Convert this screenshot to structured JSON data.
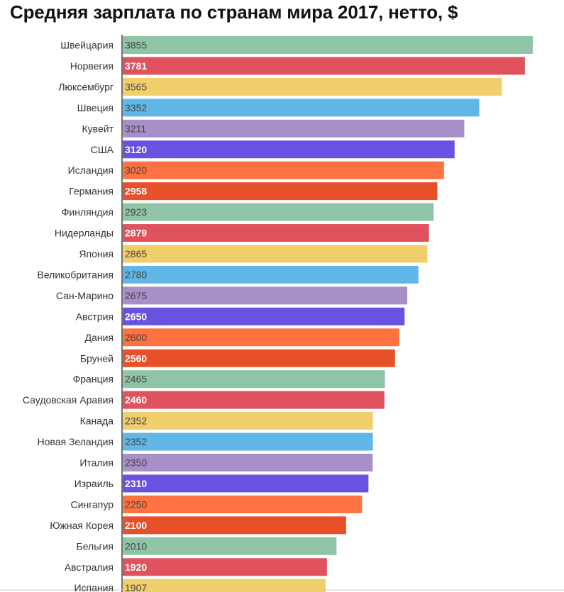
{
  "chart_data": {
    "type": "bar",
    "orientation": "horizontal",
    "title": "Средняя зарплата по странам мира 2017, нетто, $",
    "categories": [
      "Швейцария",
      "Норвегия",
      "Люксембург",
      "Швеция",
      "Кувейт",
      "США",
      "Исландия",
      "Германия",
      "Финляндия",
      "Нидерланды",
      "Япония",
      "Великобритания",
      "Сан-Марино",
      "Австрия",
      "Дания",
      "Бруней",
      "Франция",
      "Саудовская Аравия",
      "Канада",
      "Новая Зеландия",
      "Италия",
      "Израиль",
      "Сингапур",
      "Южная Корея",
      "Бельгия",
      "Австралия",
      "Испания"
    ],
    "values": [
      3855,
      3781,
      3565,
      3352,
      3211,
      3120,
      3020,
      2958,
      2923,
      2879,
      2865,
      2780,
      2675,
      2650,
      2600,
      2560,
      2465,
      2460,
      2352,
      2352,
      2350,
      2310,
      2250,
      2100,
      2010,
      1920,
      1907
    ],
    "colors": [
      "#8fc4a6",
      "#e0535e",
      "#f1ce6c",
      "#60b6e6",
      "#a98fc8",
      "#6a52e0",
      "#fd7240",
      "#e8502a"
    ],
    "label_colors": [
      "#444444",
      "#ffffff",
      "#444444",
      "#444444",
      "#444444",
      "#ffffff",
      "#444444",
      "#ffffff"
    ],
    "xlim": [
      0,
      3855
    ],
    "grid": false,
    "legend": "none"
  }
}
